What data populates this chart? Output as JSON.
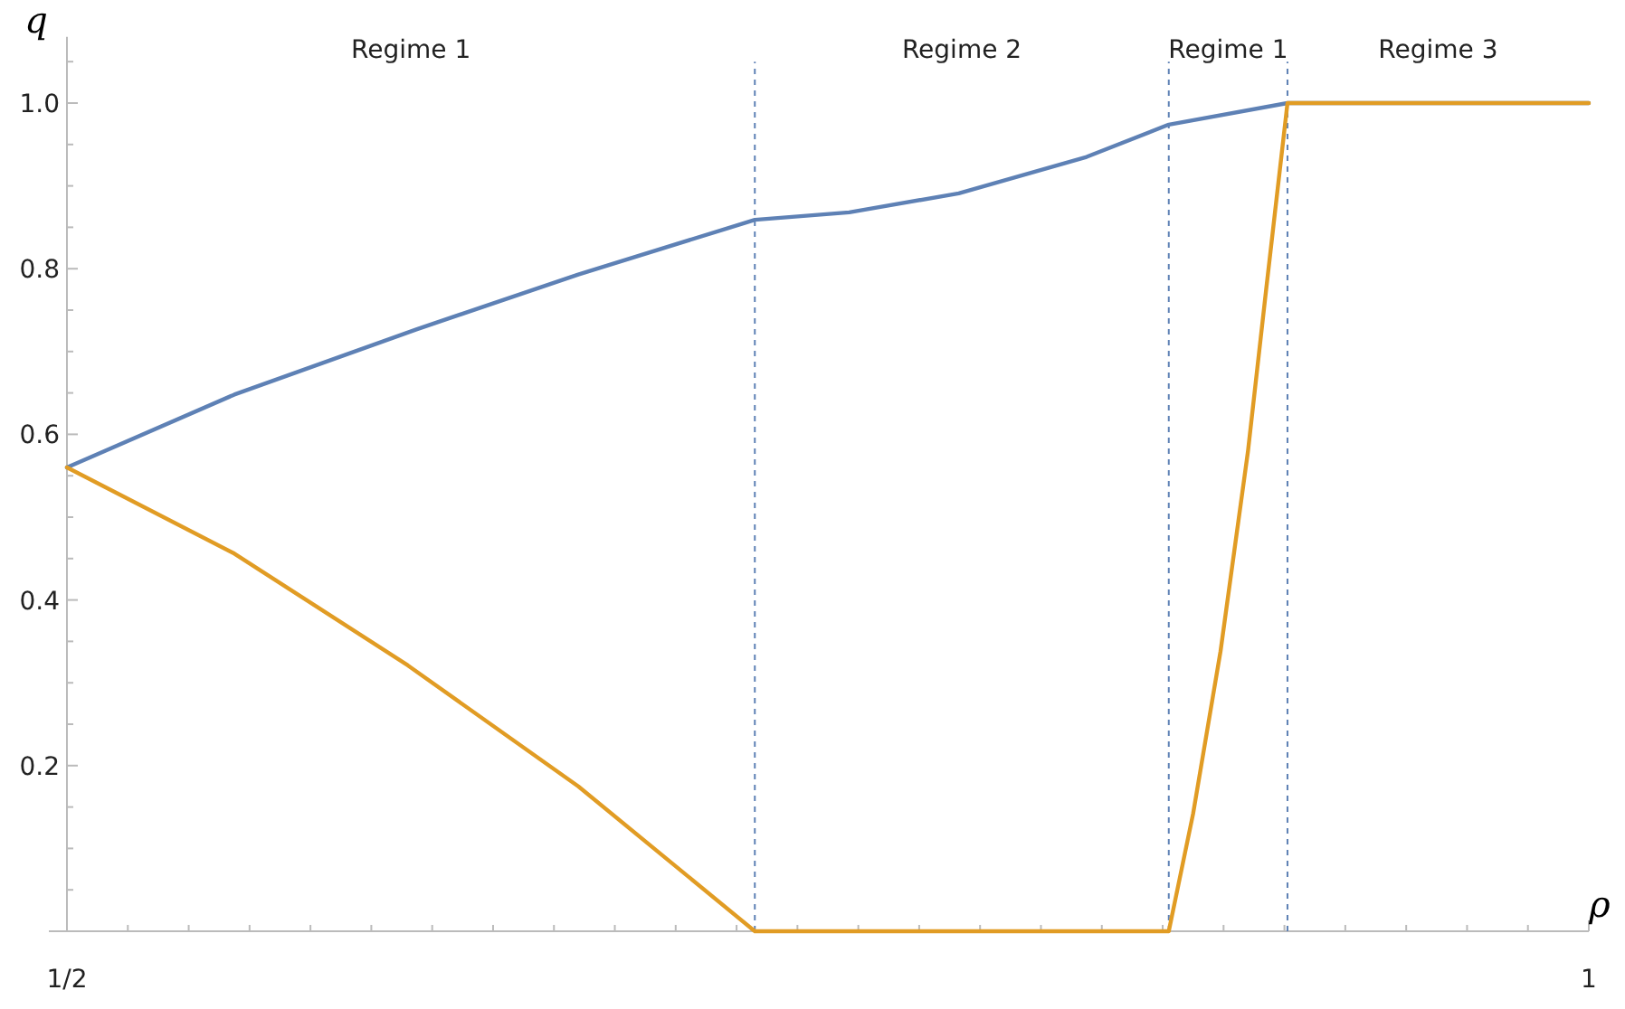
{
  "chart_data": {
    "type": "line",
    "xlabel": "ρ",
    "ylabel": "q",
    "xlim": [
      0.5,
      1.0
    ],
    "ylim": [
      0,
      1.08
    ],
    "xticks": [
      {
        "value": 0.5,
        "label": "1/2"
      },
      {
        "value": 0.52,
        "label": null
      },
      {
        "value": 0.54,
        "label": null
      },
      {
        "value": 0.56,
        "label": null
      },
      {
        "value": 0.58,
        "label": null
      },
      {
        "value": 0.6,
        "label": null
      },
      {
        "value": 0.62,
        "label": null
      },
      {
        "value": 0.64,
        "label": null
      },
      {
        "value": 0.66,
        "label": null
      },
      {
        "value": 0.68,
        "label": null
      },
      {
        "value": 0.7,
        "label": null
      },
      {
        "value": 0.72,
        "label": null
      },
      {
        "value": 0.74,
        "label": null
      },
      {
        "value": 0.76,
        "label": null
      },
      {
        "value": 0.78,
        "label": null
      },
      {
        "value": 0.8,
        "label": null
      },
      {
        "value": 0.82,
        "label": null
      },
      {
        "value": 0.84,
        "label": null
      },
      {
        "value": 0.86,
        "label": null
      },
      {
        "value": 0.88,
        "label": null
      },
      {
        "value": 0.9,
        "label": null
      },
      {
        "value": 0.92,
        "label": null
      },
      {
        "value": 0.94,
        "label": null
      },
      {
        "value": 0.96,
        "label": null
      },
      {
        "value": 0.98,
        "label": null
      },
      {
        "value": 1.0,
        "label": "1"
      }
    ],
    "yticks": [
      {
        "value": 0.05,
        "label": null
      },
      {
        "value": 0.1,
        "label": null
      },
      {
        "value": 0.15,
        "label": null
      },
      0.2,
      {
        "value": 0.25,
        "label": null
      },
      {
        "value": 0.3,
        "label": null
      },
      {
        "value": 0.35,
        "label": null
      },
      0.4,
      {
        "value": 0.45,
        "label": null
      },
      {
        "value": 0.5,
        "label": null
      },
      {
        "value": 0.55,
        "label": null
      },
      0.6,
      {
        "value": 0.65,
        "label": null
      },
      {
        "value": 0.7,
        "label": null
      },
      {
        "value": 0.75,
        "label": null
      },
      0.8,
      {
        "value": 0.85,
        "label": null
      },
      {
        "value": 0.9,
        "label": null
      },
      {
        "value": 0.95,
        "label": null
      },
      {
        "value": 1.0,
        "label": "1.0"
      },
      {
        "value": 1.05,
        "label": null
      }
    ],
    "grid": false,
    "marker": "none",
    "line_style": "solid",
    "series": [
      {
        "color": "#5e81b5",
        "x": [
          0.5,
          0.555,
          0.615,
          0.668,
          0.726,
          0.757,
          0.793,
          0.835,
          0.862,
          0.901,
          1.0
        ],
        "values": [
          0.56,
          0.648,
          0.727,
          0.793,
          0.859,
          0.868,
          0.891,
          0.935,
          0.974,
          1.0,
          1.0
        ]
      },
      {
        "color": "#e19c24",
        "x": [
          0.5,
          0.555,
          0.612,
          0.668,
          0.726,
          0.862,
          0.87,
          0.879,
          0.888,
          0.894,
          0.901,
          1.0
        ],
        "values": [
          0.56,
          0.456,
          0.321,
          0.175,
          0,
          0,
          0.142,
          0.338,
          0.579,
          0.775,
          1.0,
          1.0
        ]
      }
    ],
    "ref_lines": [
      {
        "axis": "x",
        "value": 0.726,
        "color": "#5e81b5",
        "line_style": "dashed"
      },
      {
        "axis": "x",
        "value": 0.862,
        "color": "#5e81b5",
        "line_style": "dashed"
      },
      {
        "axis": "x",
        "value": 0.901,
        "color": "#5e81b5",
        "line_style": "dashed"
      }
    ],
    "annotations": [
      "Regime 1",
      "Regime 2",
      "Regime 1",
      "Regime 3"
    ]
  }
}
